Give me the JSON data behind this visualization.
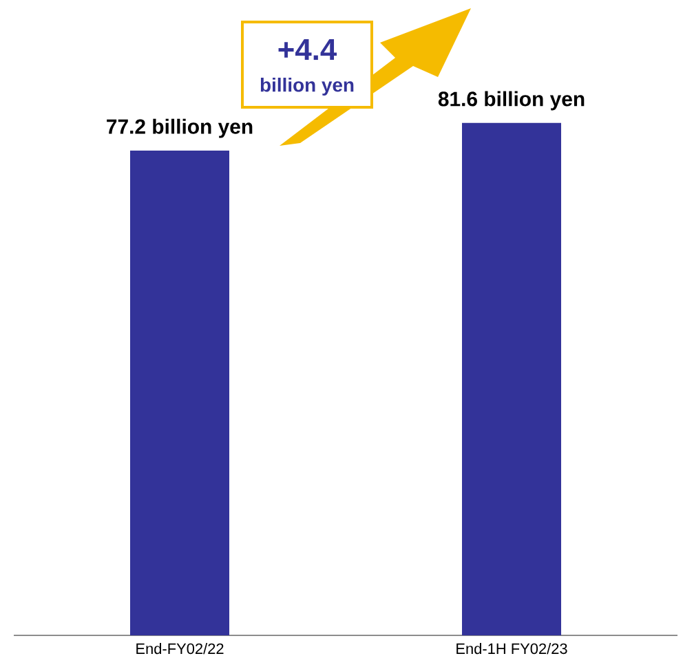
{
  "chart_data": {
    "type": "bar",
    "categories": [
      "End-FY02/22",
      "End-1H FY02/23"
    ],
    "values": [
      77.2,
      81.6
    ],
    "value_labels": [
      "77.2 billion yen",
      "81.6 billion yen"
    ],
    "color": "#333399",
    "tick_labels": "x",
    "annotations": [
      "+4.4",
      "billion yen"
    ]
  }
}
